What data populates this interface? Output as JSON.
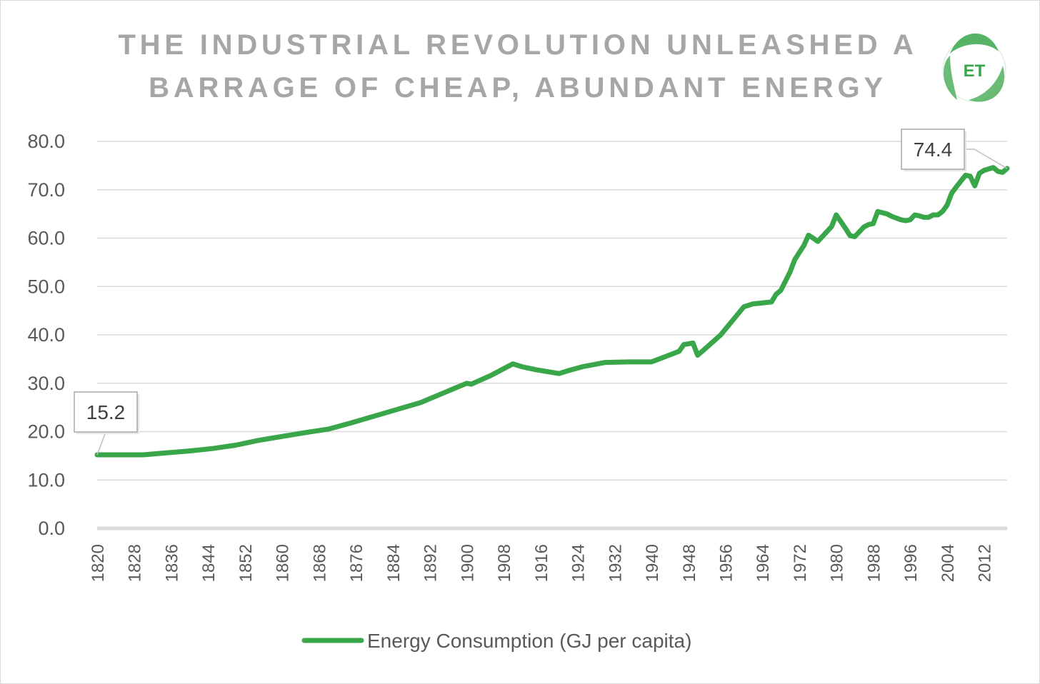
{
  "chart_data": {
    "type": "line",
    "title_lines": [
      "THE INDUSTRIAL REVOLUTION UNLEASHED A",
      "BARRAGE OF CHEAP, ABUNDANT ENERGY"
    ],
    "xlabel": "",
    "ylabel": "",
    "ylim": [
      0,
      80
    ],
    "xlim": [
      1820,
      2017
    ],
    "y_ticks": [
      "0.0",
      "10.0",
      "20.0",
      "30.0",
      "40.0",
      "50.0",
      "60.0",
      "70.0",
      "80.0"
    ],
    "x_ticks": [
      "1820",
      "1828",
      "1836",
      "1844",
      "1852",
      "1860",
      "1868",
      "1876",
      "1884",
      "1892",
      "1900",
      "1908",
      "1916",
      "1924",
      "1932",
      "1940",
      "1948",
      "1956",
      "1964",
      "1972",
      "1980",
      "1988",
      "1996",
      "2004",
      "2012"
    ],
    "grid": true,
    "legend_position": "bottom",
    "series": [
      {
        "name": "Energy Consumption (GJ per capita)",
        "color": "#3aa64a",
        "x": [
          1820,
          1825,
          1830,
          1835,
          1840,
          1845,
          1850,
          1855,
          1860,
          1865,
          1870,
          1875,
          1880,
          1885,
          1890,
          1895,
          1900,
          1901,
          1905,
          1910,
          1912,
          1915,
          1920,
          1922,
          1925,
          1930,
          1935,
          1938,
          1940,
          1943,
          1946,
          1947,
          1949,
          1950,
          1951,
          1955,
          1960,
          1962,
          1963,
          1966,
          1967,
          1968,
          1970,
          1971,
          1972,
          1973,
          1974,
          1975,
          1976,
          1979,
          1980,
          1982,
          1983,
          1984,
          1986,
          1987,
          1988,
          1989,
          1991,
          1992,
          1994,
          1995,
          1996,
          1997,
          1998,
          1999,
          2000,
          2001,
          2002,
          2003,
          2004,
          2005,
          2006,
          2007,
          2008,
          2009,
          2010,
          2011,
          2012,
          2013,
          2014,
          2015,
          2016,
          2017
        ],
        "values": [
          15.2,
          15.2,
          15.2,
          15.6,
          16.0,
          16.5,
          17.2,
          18.2,
          19.0,
          19.8,
          20.5,
          21.8,
          23.2,
          24.6,
          26.0,
          28.0,
          30.0,
          29.8,
          31.5,
          34.0,
          33.4,
          32.8,
          32.0,
          32.6,
          33.4,
          34.3,
          34.4,
          34.4,
          34.4,
          35.5,
          36.6,
          38.0,
          38.3,
          35.8,
          36.6,
          40.0,
          45.8,
          46.4,
          46.5,
          46.8,
          48.4,
          49.2,
          53.0,
          55.5,
          57.0,
          58.5,
          60.6,
          60.0,
          59.3,
          62.4,
          64.8,
          62.0,
          60.5,
          60.3,
          62.3,
          62.8,
          63.0,
          65.5,
          65.0,
          64.5,
          63.8,
          63.6,
          63.8,
          64.8,
          64.6,
          64.3,
          64.3,
          64.8,
          64.8,
          65.5,
          66.8,
          69.3,
          70.6,
          71.8,
          73.0,
          72.8,
          70.8,
          73.4,
          74.0,
          74.3,
          74.6,
          73.8,
          73.6,
          74.4
        ]
      }
    ],
    "annotations": [
      {
        "text": "15.2",
        "x": 1820,
        "y": 15.2
      },
      {
        "text": "74.4",
        "x": 2017,
        "y": 74.4
      }
    ]
  },
  "logo": {
    "text": "ET",
    "color": "#3aa64a"
  }
}
